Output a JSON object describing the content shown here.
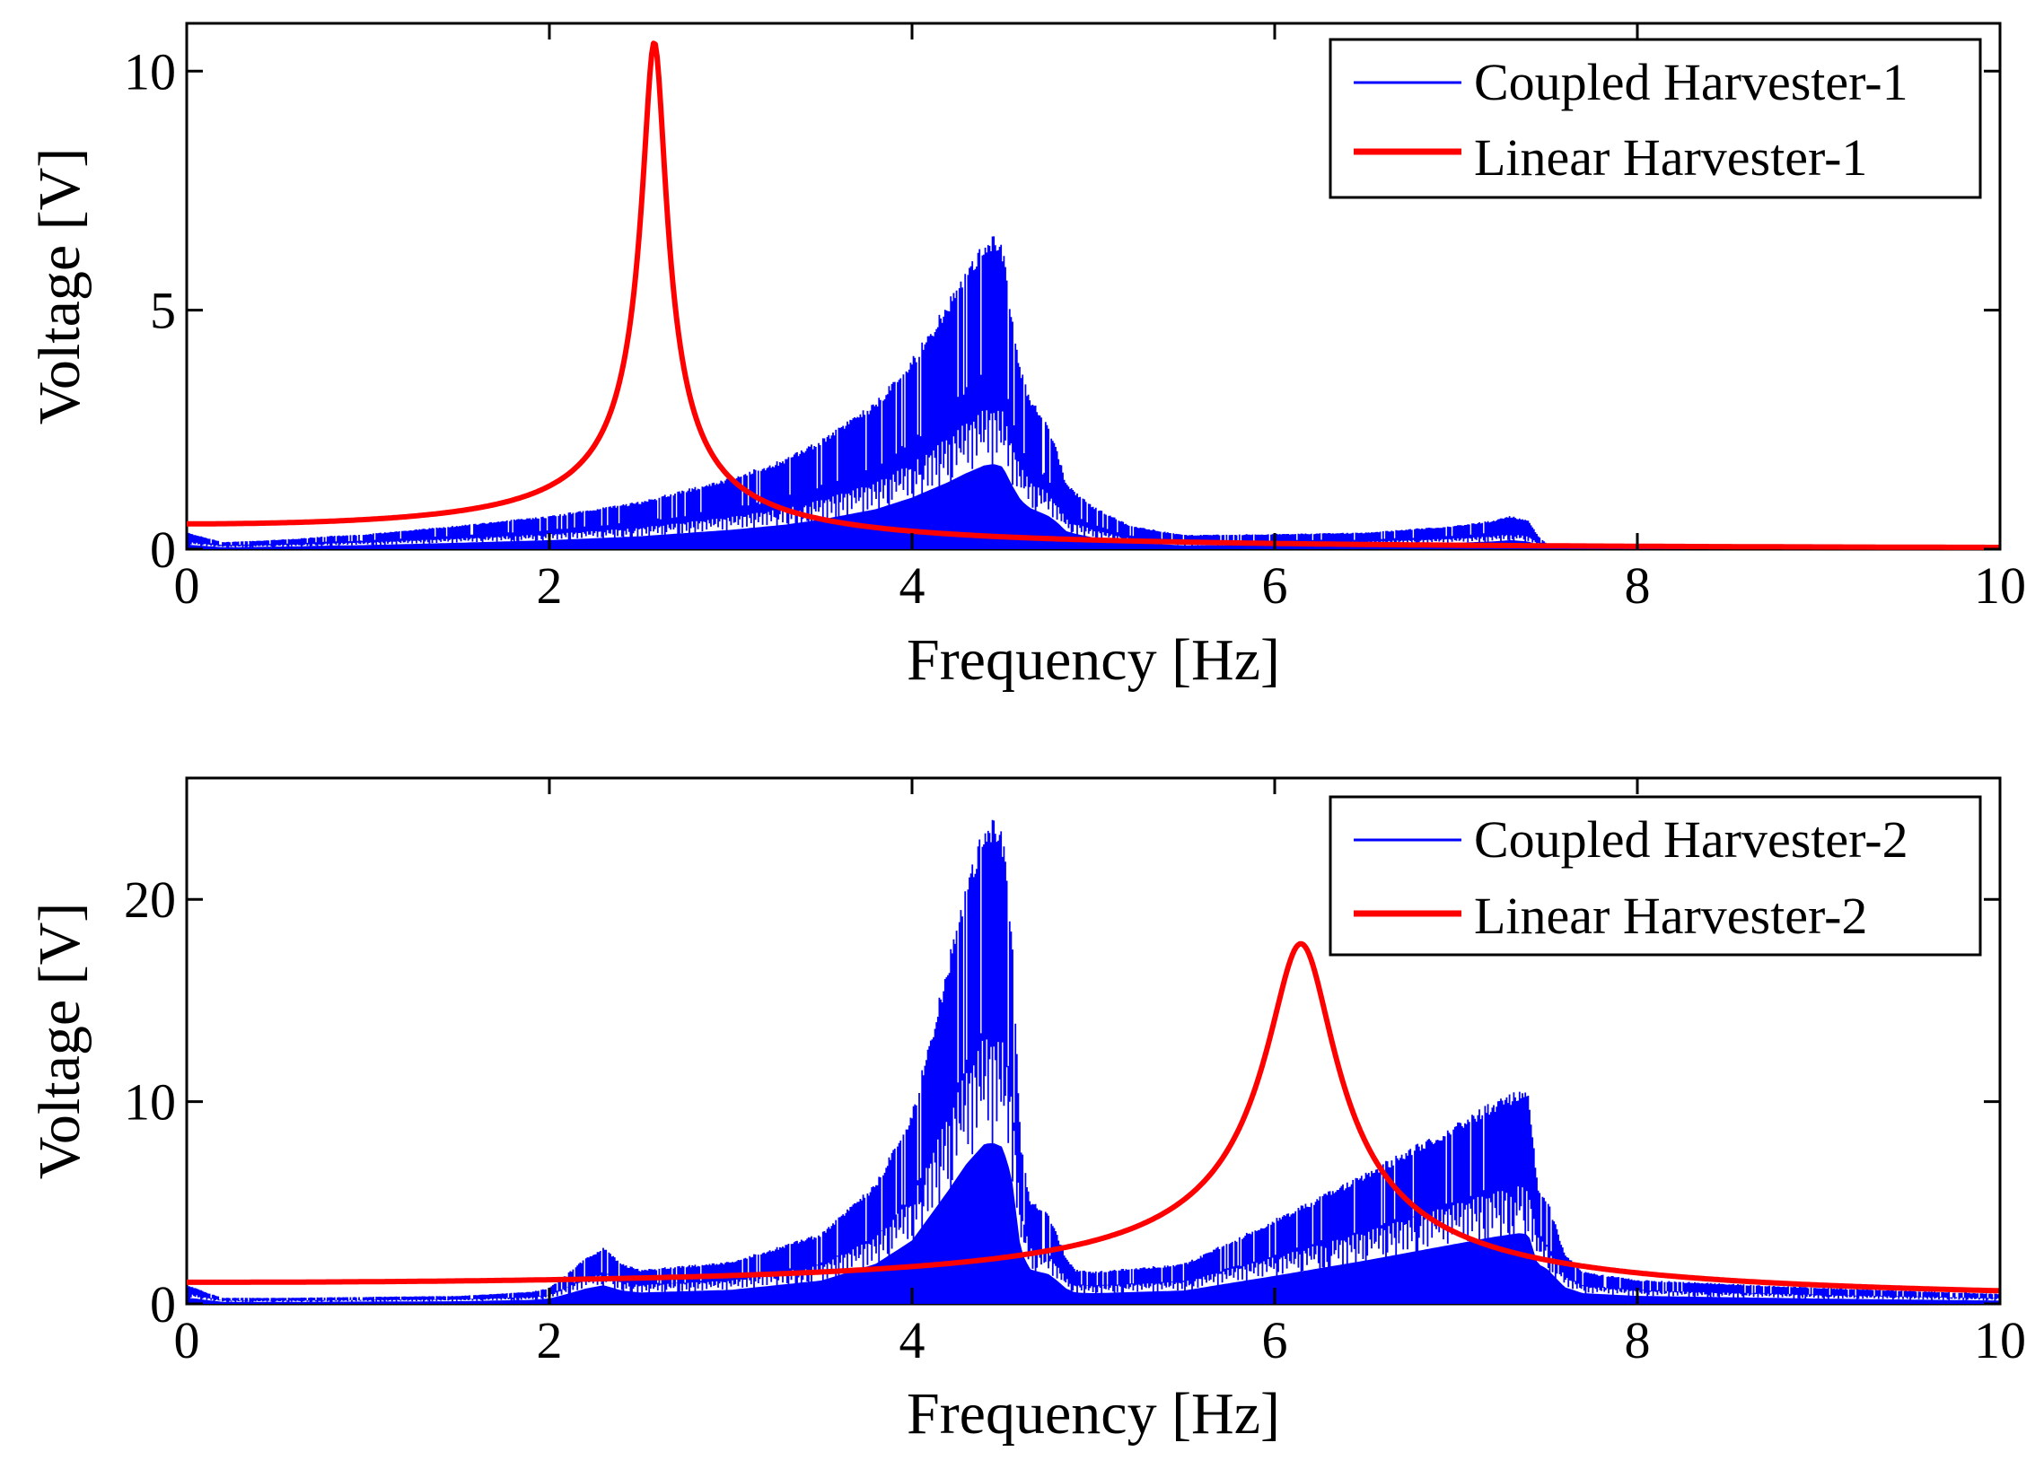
{
  "chart_data": [
    {
      "type": "line",
      "xlabel": "Frequency [Hz]",
      "ylabel": "Voltage [V]",
      "xlim": [
        0,
        10
      ],
      "ylim": [
        0,
        11
      ],
      "xticks": [
        0,
        2,
        4,
        6,
        8,
        10
      ],
      "yticks": [
        0,
        5,
        10
      ],
      "legend_position": "top-right",
      "series": [
        {
          "name": "Coupled Harvester-1",
          "color": "#0000ff",
          "style": "dense-oscillating",
          "envelope": {
            "x": [
              0,
              0.05,
              0.1,
              0.2,
              0.4,
              0.6,
              0.8,
              1.0,
              1.5,
              2.0,
              2.5,
              3.0,
              3.3,
              3.5,
              3.8,
              4.0,
              4.2,
              4.3,
              4.4,
              4.45,
              4.5,
              4.55,
              4.6,
              4.65,
              4.7,
              4.75,
              4.8,
              4.85,
              4.9,
              5.0,
              5.2,
              5.5,
              6.0,
              6.5,
              7.0,
              7.2,
              7.3,
              7.4,
              7.45,
              7.5,
              8.0,
              9.0,
              10.0
            ],
            "y": [
              0.35,
              0.3,
              0.25,
              0.15,
              0.18,
              0.22,
              0.28,
              0.32,
              0.5,
              0.7,
              1.0,
              1.5,
              1.9,
              2.3,
              3.1,
              4.0,
              5.2,
              5.9,
              6.5,
              6.6,
              6.4,
              5.0,
              3.8,
              3.2,
              2.9,
              2.6,
              2.1,
              1.4,
              1.2,
              0.9,
              0.5,
              0.3,
              0.32,
              0.35,
              0.5,
              0.6,
              0.7,
              0.6,
              0.3,
              0.12,
              0.08,
              0.05,
              0.04
            ]
          },
          "floor_fraction": 0.45
        },
        {
          "name": "Linear Harvester-1",
          "color": "#ff0000",
          "style": "resonance",
          "resonance": {
            "f0": 2.58,
            "peak": 10.6,
            "zeta": 0.025
          }
        }
      ]
    },
    {
      "type": "line",
      "xlabel": "Frequency [Hz]",
      "ylabel": "Voltage [V]",
      "xlim": [
        0,
        10
      ],
      "ylim": [
        0,
        26
      ],
      "xticks": [
        0,
        2,
        4,
        6,
        8,
        10
      ],
      "yticks": [
        0,
        10,
        20
      ],
      "legend_position": "top-right",
      "series": [
        {
          "name": "Coupled Harvester-2",
          "color": "#0000ff",
          "style": "dense-oscillating",
          "envelope": {
            "x": [
              0,
              0.05,
              0.1,
              0.2,
              0.5,
              1.0,
              1.5,
              1.9,
              2.0,
              2.1,
              2.2,
              2.3,
              2.4,
              2.5,
              3.0,
              3.5,
              3.8,
              4.0,
              4.2,
              4.3,
              4.4,
              4.45,
              4.5,
              4.55,
              4.6,
              4.65,
              4.7,
              4.75,
              4.8,
              4.85,
              4.9,
              5.0,
              5.5,
              6.0,
              6.5,
              7.0,
              7.2,
              7.35,
              7.4,
              7.45,
              7.5,
              7.6,
              7.7,
              8.0,
              9.0,
              10.0
            ],
            "y": [
              0.9,
              0.8,
              0.6,
              0.3,
              0.3,
              0.35,
              0.4,
              0.6,
              0.8,
              1.5,
              2.3,
              2.8,
              2.0,
              1.7,
              2.1,
              3.5,
              6.0,
              9.5,
              17.0,
              21.0,
              24.0,
              24.1,
              23.5,
              19.0,
              8.0,
              5.2,
              4.8,
              4.5,
              3.5,
              2.3,
              1.7,
              1.6,
              2.0,
              4.2,
              6.5,
              9.0,
              10.0,
              10.6,
              10.4,
              6.0,
              5.3,
              2.5,
              1.6,
              1.2,
              0.8,
              0.5
            ]
          },
          "floor_fraction": 0.55
        },
        {
          "name": "Linear Harvester-2",
          "color": "#ff0000",
          "style": "resonance",
          "resonance": {
            "f0": 6.15,
            "peak": 17.8,
            "zeta": 0.03
          }
        }
      ]
    }
  ]
}
